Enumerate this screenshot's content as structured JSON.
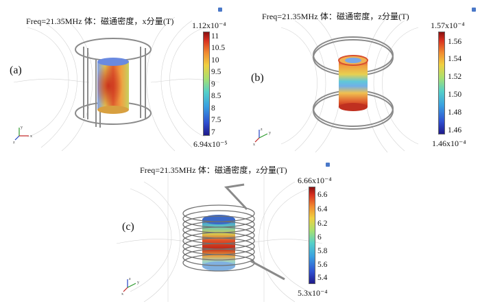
{
  "panels": [
    {
      "label": "(a)",
      "title": "Freq=21.35MHz    体：磁通密度，x分量(T)",
      "colorbar": {
        "max_label": "1.12x10⁻⁴",
        "min_label": "6.94x10⁻⁵",
        "ticks": [
          "11",
          "10.5",
          "10",
          "9.5",
          "9",
          "8.5",
          "8",
          "7.5",
          "7"
        ],
        "max_value": 11.2,
        "min_value": 6.94
      },
      "axes_labels": [
        "y",
        "z",
        "x"
      ]
    },
    {
      "label": "(b)",
      "title": "Freq=21.35MHz    体：磁通密度，z分量(T)",
      "colorbar": {
        "max_label": "1.57x10⁻⁴",
        "min_label": "1.46x10⁻⁴",
        "ticks": [
          "1.56",
          "1.54",
          "1.52",
          "1.50",
          "1.48",
          "1.46"
        ],
        "max_value": 1.57,
        "min_value": 1.46
      },
      "axes_labels": [
        "z",
        "y",
        "x"
      ]
    },
    {
      "label": "(c)",
      "title": "Freq=21.35MHz    体：磁通密度，z分量(T)",
      "colorbar": {
        "max_label": "6.66x10⁻⁴",
        "min_label": "5.3x10⁻⁴",
        "ticks": [
          "6.6",
          "6.4",
          "6.2",
          "6",
          "5.8",
          "5.6",
          "5.4"
        ],
        "max_value": 6.66,
        "min_value": 5.3
      },
      "axes_labels": [
        "z",
        "y",
        "x"
      ]
    }
  ],
  "colors": {
    "jet": [
      "#1f1a8a",
      "#2f4fd0",
      "#3aa0e0",
      "#55d0c8",
      "#a8e070",
      "#f0d040",
      "#f08a30",
      "#d83020",
      "#8a1010"
    ],
    "coil": "#888888",
    "fieldline": "#c9c9c9"
  }
}
